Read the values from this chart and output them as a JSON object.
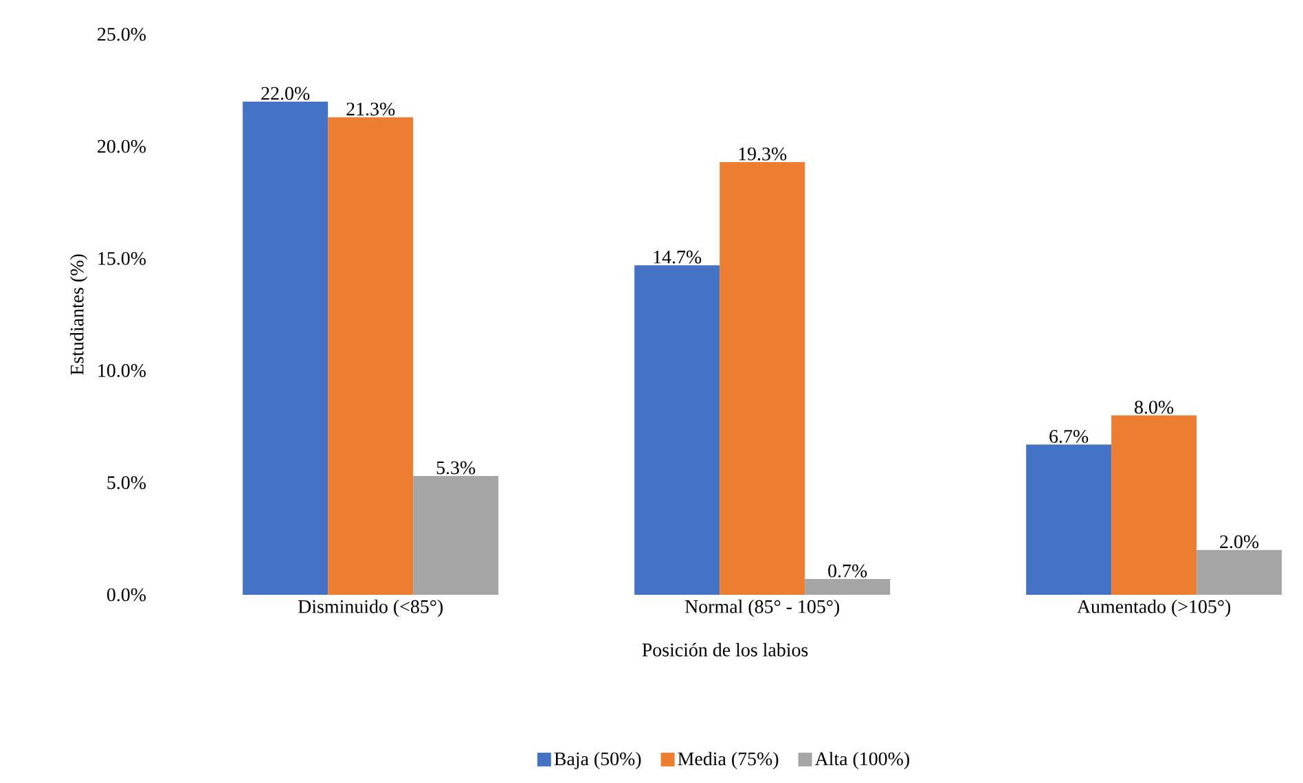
{
  "chart_data": {
    "type": "bar",
    "xlabel": "Posición de los labios",
    "ylabel": "Estudiantes (%)",
    "categories": [
      "Disminuido (<85°)",
      "Normal (85° - 105°)",
      "Aumentado (>105°)"
    ],
    "series": [
      {
        "name": "Baja (50%)",
        "color": "#4472c4",
        "values": [
          22.0,
          14.7,
          6.7
        ],
        "value_labels": [
          "22.0%",
          "14.7%",
          "6.7%"
        ]
      },
      {
        "name": "Media (75%)",
        "color": "#ed7d31",
        "values": [
          21.3,
          19.3,
          8.0
        ],
        "value_labels": [
          "21.3%",
          "19.3%",
          "8.0%"
        ]
      },
      {
        "name": "Alta (100%)",
        "color": "#a5a5a5",
        "values": [
          5.3,
          0.7,
          2.0
        ],
        "value_labels": [
          "5.3%",
          "0.7%",
          "2.0%"
        ]
      }
    ],
    "ylim": [
      0,
      25
    ],
    "yticks": [
      {
        "value": 0,
        "label": "0.0%"
      },
      {
        "value": 5,
        "label": "5.0%"
      },
      {
        "value": 10,
        "label": "10.0%"
      },
      {
        "value": 15,
        "label": "15.0%"
      },
      {
        "value": 20,
        "label": "20.0%"
      },
      {
        "value": 25,
        "label": "25.0%"
      }
    ],
    "grid": false,
    "legend": "bottom"
  }
}
